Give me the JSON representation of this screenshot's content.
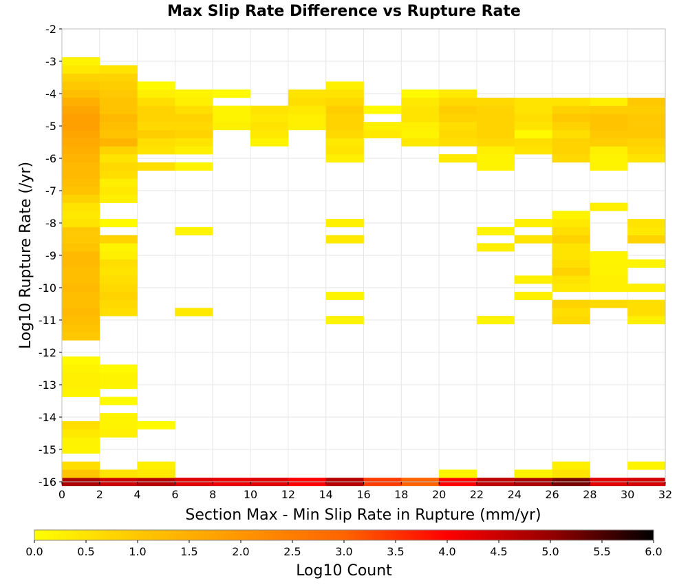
{
  "chart_data": {
    "type": "heatmap",
    "title": "Max Slip Rate Difference vs Rupture Rate",
    "xlabel": "Section Max - Min Slip Rate in Rupture (mm/yr)",
    "ylabel": "Log10 Rupture Rate (/yr)",
    "colorbar_label": "Log10 Count",
    "xlim": [
      0,
      32
    ],
    "ylim": [
      -16,
      -2
    ],
    "x_ticks": [
      "0",
      "2",
      "4",
      "6",
      "8",
      "10",
      "12",
      "14",
      "16",
      "18",
      "20",
      "22",
      "24",
      "26",
      "28",
      "30",
      "32"
    ],
    "y_ticks": [
      "-2",
      "-3",
      "-4",
      "-5",
      "-6",
      "-7",
      "-8",
      "-9",
      "-10",
      "-11",
      "-12",
      "-13",
      "-14",
      "-15",
      "-16"
    ],
    "colorbar_ticks": [
      "0.0",
      "0.5",
      "1.0",
      "1.5",
      "2.0",
      "2.5",
      "3.0",
      "3.5",
      "4.0",
      "4.5",
      "5.0",
      "5.5",
      "6.0"
    ],
    "colorbar_range": [
      0,
      6
    ],
    "x_bin_width": 2,
    "y_bin_height": 0.25,
    "grid": true,
    "colorscale": [
      "#ffff00",
      "#ffc800",
      "#ff9600",
      "#ff6400",
      "#ff0000",
      "#960000",
      "#000000"
    ],
    "columns": [
      {
        "x": 1,
        "cells": [
          [
            -16,
            4.8
          ],
          [
            -15.75,
            1.1
          ],
          [
            -15.5,
            0.6
          ],
          [
            -15,
            0.2
          ],
          [
            -14.75,
            0.2
          ],
          [
            -14.5,
            0.4
          ],
          [
            -14.25,
            0.6
          ],
          [
            -13.25,
            0.2
          ],
          [
            -13,
            0.3
          ],
          [
            -12.75,
            0.3
          ],
          [
            -12.5,
            0.2
          ],
          [
            -12.25,
            0.1
          ],
          [
            -11.5,
            1.0
          ],
          [
            -11.25,
            1.1
          ],
          [
            -11,
            1.2
          ],
          [
            -10.75,
            1.3
          ],
          [
            -10.5,
            1.2
          ],
          [
            -10.25,
            1.2
          ],
          [
            -10,
            1.3
          ],
          [
            -9.75,
            1.2
          ],
          [
            -9.5,
            1.2
          ],
          [
            -9.25,
            1.3
          ],
          [
            -9,
            1.3
          ],
          [
            -8.75,
            1.1
          ],
          [
            -8.5,
            1.0
          ],
          [
            -8.25,
            1.0
          ],
          [
            -8,
            0.5
          ],
          [
            -7.75,
            0.4
          ],
          [
            -7.5,
            0.5
          ],
          [
            -7.25,
            0.8
          ],
          [
            -7,
            1.1
          ],
          [
            -6.75,
            1.2
          ],
          [
            -6.5,
            1.3
          ],
          [
            -6.25,
            1.3
          ],
          [
            -6,
            1.4
          ],
          [
            -5.75,
            1.5
          ],
          [
            -5.5,
            1.6
          ],
          [
            -5.25,
            1.7
          ],
          [
            -5,
            1.8
          ],
          [
            -4.75,
            1.8
          ],
          [
            -4.5,
            1.7
          ],
          [
            -4.25,
            1.5
          ],
          [
            -4,
            1.2
          ],
          [
            -3.75,
            1.0
          ],
          [
            -3.5,
            0.8
          ],
          [
            -3.25,
            0.4
          ],
          [
            -3,
            0.2
          ]
        ]
      },
      {
        "x": 3,
        "cells": [
          [
            -16,
            4.5
          ],
          [
            -15.75,
            0.5
          ],
          [
            -14.5,
            0.3
          ],
          [
            -14.25,
            0.2
          ],
          [
            -14,
            0.2
          ],
          [
            -13.5,
            0.1
          ],
          [
            -13,
            0.2
          ],
          [
            -12.75,
            0.2
          ],
          [
            -12.5,
            0.1
          ],
          [
            -10.75,
            0.6
          ],
          [
            -10.5,
            0.7
          ],
          [
            -10.25,
            0.8
          ],
          [
            -10,
            0.7
          ],
          [
            -9.75,
            0.6
          ],
          [
            -9.5,
            0.5
          ],
          [
            -9.25,
            0.6
          ],
          [
            -9,
            0.3
          ],
          [
            -8.75,
            0.2
          ],
          [
            -8.5,
            0.8
          ],
          [
            -8,
            0.1
          ],
          [
            -7.25,
            0.3
          ],
          [
            -7,
            0.4
          ],
          [
            -6.75,
            0.3
          ],
          [
            -6.5,
            0.6
          ],
          [
            -6.25,
            0.7
          ],
          [
            -6,
            0.5
          ],
          [
            -5.75,
            0.8
          ],
          [
            -5.5,
            1.4
          ],
          [
            -5.25,
            1.1
          ],
          [
            -5,
            1.2
          ],
          [
            -4.75,
            1.3
          ],
          [
            -4.5,
            1.1
          ],
          [
            -4.25,
            1.1
          ],
          [
            -4,
            1.0
          ],
          [
            -3.75,
            0.9
          ],
          [
            -3.5,
            0.8
          ],
          [
            -3.25,
            0.5
          ]
        ]
      },
      {
        "x": 5,
        "cells": [
          [
            -16,
            4.7
          ],
          [
            -15.75,
            0.4
          ],
          [
            -15.5,
            0.3
          ],
          [
            -14.25,
            0.1
          ],
          [
            -6.25,
            0.6
          ],
          [
            -5.75,
            0.5
          ],
          [
            -5.5,
            0.6
          ],
          [
            -5.25,
            0.9
          ],
          [
            -5,
            0.7
          ],
          [
            -4.75,
            0.8
          ],
          [
            -4.5,
            0.8
          ],
          [
            -4.25,
            0.6
          ],
          [
            -4,
            0.3
          ],
          [
            -3.75,
            0.1
          ]
        ]
      },
      {
        "x": 7,
        "cells": [
          [
            -16,
            4.3
          ],
          [
            -10.75,
            0.4
          ],
          [
            -8.25,
            0.2
          ],
          [
            -6.25,
            0.2
          ],
          [
            -5.75,
            0.3
          ],
          [
            -5.5,
            0.5
          ],
          [
            -5.25,
            0.8
          ],
          [
            -5,
            0.7
          ],
          [
            -4.75,
            0.8
          ],
          [
            -4.5,
            0.6
          ],
          [
            -4.25,
            0.3
          ],
          [
            -4,
            0.2
          ]
        ]
      },
      {
        "x": 9,
        "cells": [
          [
            -16,
            4.2
          ],
          [
            -5,
            0.3
          ],
          [
            -4.75,
            0.2
          ],
          [
            -4.5,
            0.2
          ],
          [
            -4,
            0.1
          ]
        ]
      },
      {
        "x": 11,
        "cells": [
          [
            -16,
            4.3
          ],
          [
            -5.5,
            0.2
          ],
          [
            -5.25,
            0.4
          ],
          [
            -5,
            0.5
          ],
          [
            -4.75,
            0.4
          ],
          [
            -4.5,
            0.5
          ]
        ]
      },
      {
        "x": 13,
        "cells": [
          [
            -16,
            4.0
          ],
          [
            -5,
            0.3
          ],
          [
            -4.75,
            0.3
          ],
          [
            -4.5,
            0.4
          ],
          [
            -4.25,
            0.6
          ],
          [
            -4,
            0.5
          ]
        ]
      },
      {
        "x": 15,
        "cells": [
          [
            -16,
            4.7
          ],
          [
            -11,
            0.2
          ],
          [
            -10.25,
            0.2
          ],
          [
            -8.5,
            0.4
          ],
          [
            -8,
            0.3
          ],
          [
            -6,
            0.3
          ],
          [
            -5.75,
            0.5
          ],
          [
            -5.5,
            0.4
          ],
          [
            -5.25,
            0.7
          ],
          [
            -5,
            0.8
          ],
          [
            -4.75,
            0.8
          ],
          [
            -4.5,
            0.9
          ],
          [
            -4.25,
            0.7
          ],
          [
            -4,
            0.5
          ],
          [
            -3.75,
            0.3
          ]
        ]
      },
      {
        "x": 17,
        "cells": [
          [
            -16,
            3.4
          ],
          [
            -5.25,
            0.4
          ],
          [
            -5,
            0.3
          ],
          [
            -4.5,
            0.1
          ]
        ]
      },
      {
        "x": 19,
        "cells": [
          [
            -16,
            3.0
          ],
          [
            -5.5,
            0.4
          ],
          [
            -5.25,
            0.2
          ],
          [
            -5,
            0.3
          ],
          [
            -4.75,
            0.5
          ],
          [
            -4.5,
            0.5
          ],
          [
            -4.25,
            0.4
          ],
          [
            -4,
            0.1
          ]
        ]
      },
      {
        "x": 21,
        "cells": [
          [
            -16,
            4.0
          ],
          [
            -15.75,
            0.2
          ],
          [
            -6,
            0.4
          ],
          [
            -5.5,
            0.6
          ],
          [
            -5.25,
            0.7
          ],
          [
            -5,
            0.6
          ],
          [
            -4.75,
            0.8
          ],
          [
            -4.5,
            0.9
          ],
          [
            -4.25,
            0.7
          ],
          [
            -4,
            0.4
          ]
        ]
      },
      {
        "x": 23,
        "cells": [
          [
            -16,
            4.6
          ],
          [
            -11,
            0.2
          ],
          [
            -8.75,
            0.3
          ],
          [
            -8.25,
            0.2
          ],
          [
            -6.25,
            0.2
          ],
          [
            -6,
            0.2
          ],
          [
            -5.75,
            0.3
          ],
          [
            -5.5,
            0.7
          ],
          [
            -5.25,
            0.8
          ],
          [
            -5,
            0.8
          ],
          [
            -4.75,
            0.8
          ],
          [
            -4.5,
            0.8
          ],
          [
            -4.25,
            0.7
          ]
        ]
      },
      {
        "x": 25,
        "cells": [
          [
            -16,
            4.8
          ],
          [
            -15.75,
            0.2
          ],
          [
            -10.25,
            0.3
          ],
          [
            -9.75,
            0.3
          ],
          [
            -8.5,
            0.5
          ],
          [
            -8,
            0.3
          ],
          [
            -5.75,
            0.5
          ],
          [
            -5.5,
            0.6
          ],
          [
            -5.25,
            0.1
          ],
          [
            -5,
            0.5
          ],
          [
            -4.75,
            0.6
          ],
          [
            -4.5,
            0.5
          ],
          [
            -4.25,
            0.5
          ]
        ]
      },
      {
        "x": 27,
        "cells": [
          [
            -16,
            5.2
          ],
          [
            -15.75,
            0.5
          ],
          [
            -15.5,
            0.3
          ],
          [
            -11,
            0.7
          ],
          [
            -10.75,
            0.6
          ],
          [
            -10.5,
            0.8
          ],
          [
            -10,
            0.4
          ],
          [
            -9.75,
            0.5
          ],
          [
            -9.5,
            0.8
          ],
          [
            -9.25,
            0.6
          ],
          [
            -9,
            0.5
          ],
          [
            -8.75,
            0.5
          ],
          [
            -8.5,
            0.8
          ],
          [
            -8.25,
            0.6
          ],
          [
            -8,
            0.4
          ],
          [
            -7.75,
            0.2
          ],
          [
            -6,
            0.7
          ],
          [
            -5.75,
            0.8
          ],
          [
            -5.5,
            0.8
          ],
          [
            -5.25,
            0.6
          ],
          [
            -5,
            0.8
          ],
          [
            -4.75,
            1.0
          ],
          [
            -4.5,
            0.8
          ],
          [
            -4.25,
            0.5
          ]
        ]
      },
      {
        "x": 29,
        "cells": [
          [
            -16,
            4.3
          ],
          [
            -10.5,
            0.7
          ],
          [
            -10,
            0.3
          ],
          [
            -9.75,
            0.3
          ],
          [
            -9.5,
            0.2
          ],
          [
            -9.25,
            0.2
          ],
          [
            -9,
            0.2
          ],
          [
            -7.5,
            0.3
          ],
          [
            -6.25,
            0.2
          ],
          [
            -6,
            0.2
          ],
          [
            -5.75,
            0.3
          ],
          [
            -5.5,
            0.9
          ],
          [
            -5.25,
            1.0
          ],
          [
            -5,
            1.1
          ],
          [
            -4.75,
            1.1
          ],
          [
            -4.5,
            0.9
          ],
          [
            -4.25,
            0.3
          ]
        ]
      },
      {
        "x": 31,
        "cells": [
          [
            -16,
            4.4
          ],
          [
            -15.5,
            0.2
          ],
          [
            -11,
            0.3
          ],
          [
            -10.75,
            0.6
          ],
          [
            -10.5,
            0.6
          ],
          [
            -10,
            0.3
          ],
          [
            -9.25,
            0.2
          ],
          [
            -8.5,
            0.8
          ],
          [
            -8.25,
            0.4
          ],
          [
            -8,
            0.5
          ],
          [
            -6,
            0.5
          ],
          [
            -5.75,
            0.7
          ],
          [
            -5.5,
            0.8
          ],
          [
            -5.25,
            1.0
          ],
          [
            -5,
            1.0
          ],
          [
            -4.75,
            1.0
          ],
          [
            -4.5,
            0.9
          ],
          [
            -4.25,
            1.0
          ]
        ]
      }
    ]
  }
}
